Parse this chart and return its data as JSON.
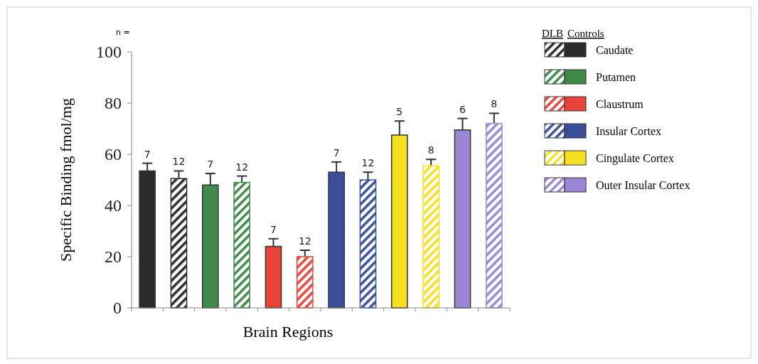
{
  "chart_data": {
    "type": "bar",
    "xlabel": "Brain Regions",
    "ylabel": "Specific Binding fmol/mg",
    "categories": [
      null,
      null,
      null,
      null,
      null,
      null,
      null,
      null,
      null,
      null,
      null,
      null
    ],
    "ylim": [
      0,
      100
    ],
    "yticks": [
      0,
      20,
      40,
      60,
      80,
      100
    ],
    "legend": "right",
    "grid": false,
    "annotations": [
      "n =",
      "DLB",
      "Controls",
      "7",
      "12",
      "7",
      "12",
      "7",
      "12",
      "7",
      "12",
      "5",
      "8",
      "6",
      "8"
    ],
    "series": [
      {
        "name": "Caudate",
        "color": "#2b2b2b",
        "values": [
          53.5,
          50.5,
          null,
          null,
          null,
          null,
          null,
          null,
          null,
          null,
          null,
          null
        ],
        "errors": [
          [
            53.5,
            56.5
          ],
          [
            50.5,
            53.5
          ],
          null,
          null,
          null,
          null,
          null,
          null,
          null,
          null,
          null,
          null
        ]
      },
      {
        "name": "Putamen",
        "color": "#3f8a4a",
        "values": [
          null,
          null,
          48,
          49,
          null,
          null,
          null,
          null,
          null,
          null,
          null,
          null
        ],
        "errors": [
          null,
          null,
          [
            48,
            52.5
          ],
          [
            49,
            51.5
          ],
          null,
          null,
          null,
          null,
          null,
          null,
          null,
          null
        ]
      },
      {
        "name": "Claustrum",
        "color": "#e8443a",
        "values": [
          null,
          null,
          null,
          null,
          24,
          20,
          null,
          null,
          null,
          null,
          null,
          null
        ],
        "errors": [
          null,
          null,
          null,
          null,
          [
            24,
            27
          ],
          [
            20,
            22.5
          ],
          null,
          null,
          null,
          null,
          null,
          null
        ]
      },
      {
        "name": "Insular Cortex",
        "color": "#3a4e9a",
        "values": [
          null,
          null,
          null,
          null,
          null,
          null,
          53,
          50,
          null,
          null,
          null,
          null
        ],
        "errors": [
          null,
          null,
          null,
          null,
          null,
          null,
          [
            53,
            57
          ],
          [
            50,
            53
          ],
          null,
          null,
          null,
          null
        ]
      },
      {
        "name": "Cingulate Cortex",
        "color": "#f5e020",
        "values": [
          null,
          null,
          null,
          null,
          null,
          null,
          null,
          null,
          67.5,
          55.5,
          null,
          null
        ],
        "errors": [
          null,
          null,
          null,
          null,
          null,
          null,
          null,
          null,
          [
            67.5,
            73
          ],
          [
            55.5,
            58
          ],
          null,
          null
        ]
      },
      {
        "name": "Outer Insular Cortex",
        "color": "#9b86d6",
        "values": [
          null,
          null,
          null,
          null,
          null,
          null,
          null,
          null,
          null,
          null,
          69.5,
          72
        ],
        "errors": [
          null,
          null,
          null,
          null,
          null,
          null,
          null,
          null,
          null,
          null,
          [
            69.5,
            74
          ],
          [
            72,
            76
          ]
        ]
      }
    ]
  }
}
